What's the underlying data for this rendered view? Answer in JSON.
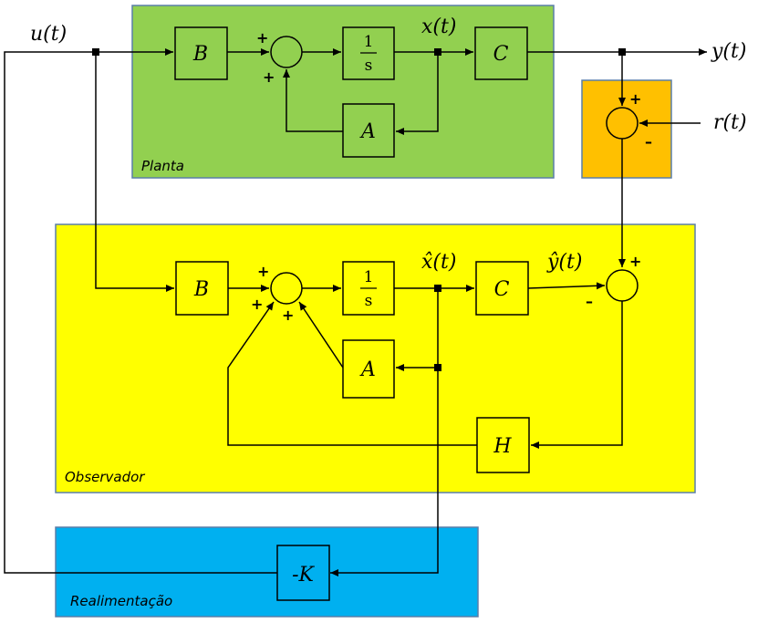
{
  "regions": {
    "plant": "Planta",
    "observer": "Observador",
    "feedback": "Realimentação"
  },
  "blocks": {
    "plant_b": "B",
    "plant_c": "C",
    "plant_a": "A",
    "obs_b": "B",
    "obs_c": "C",
    "obs_a": "A",
    "obs_h": "H",
    "gain_k": "-K",
    "integrator_num": "1",
    "integrator_den": "s"
  },
  "signals": {
    "input": "u(t)",
    "output": "y(t)",
    "reference": "r(t)",
    "state": "x(t)",
    "state_estimate": "x̂(t)",
    "output_estimate": "ŷ(t)"
  },
  "signs": {
    "plus": "+",
    "minus": "–"
  },
  "colors": {
    "plant": "#92d050",
    "observer": "#ffff00",
    "feedback": "#00b0f0",
    "error": "#ffc000"
  }
}
